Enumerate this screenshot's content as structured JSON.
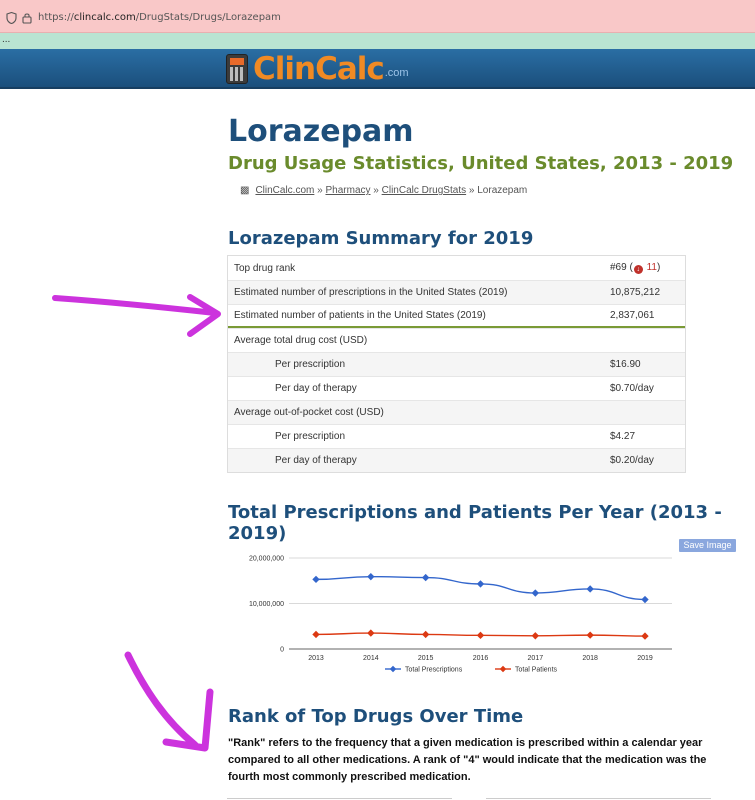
{
  "browser": {
    "url_prefix": "https://",
    "url_host": "clincalc.com",
    "url_path": "/DrugStats/Drugs/Lorazepam",
    "bookmarks_overflow": "..."
  },
  "site": {
    "logo_part1": "Clin",
    "logo_part2": "Calc",
    "logo_suffix": ".com"
  },
  "page": {
    "title": "Lorazepam",
    "subtitle": "Drug Usage Statistics, United States, 2013 - 2019",
    "breadcrumb": {
      "items": [
        "ClinCalc.com",
        "Pharmacy",
        "ClinCalc DrugStats"
      ],
      "separator": "»",
      "current": "Lorazepam"
    }
  },
  "summary": {
    "heading": "Lorazepam Summary for 2019",
    "rows": [
      {
        "label": "Top drug rank",
        "value": "#69 (",
        "change": "11",
        "value_end": ")"
      },
      {
        "label": "Estimated number of prescriptions in the United States (2019)",
        "value": "10,875,212"
      },
      {
        "label": "Estimated number of patients in the United States (2019)",
        "value": "2,837,061"
      },
      {
        "label": "Average total drug cost (USD)",
        "value": ""
      },
      {
        "label": "Per prescription",
        "value": "$16.90"
      },
      {
        "label": "Per day of therapy",
        "value": "$0.70/day"
      },
      {
        "label": "Average out-of-pocket cost (USD)",
        "value": ""
      },
      {
        "label": "Per prescription",
        "value": "$4.27"
      },
      {
        "label": "Per day of therapy",
        "value": "$0.20/day"
      }
    ]
  },
  "trend": {
    "heading": "Total Prescriptions and Patients Per Year (2013 - 2019)",
    "save_button": "Save Image"
  },
  "chart_data": {
    "type": "line",
    "x": [
      "2013",
      "2014",
      "2015",
      "2016",
      "2017",
      "2018",
      "2019"
    ],
    "ylim": [
      0,
      20000000
    ],
    "yticks": [
      "0",
      "10,000,000",
      "20,000,000"
    ],
    "grid": true,
    "legend_position": "bottom",
    "series": [
      {
        "name": "Total Prescriptions",
        "color": "#3366cc",
        "values": [
          15300000,
          15900000,
          15700000,
          14300000,
          12300000,
          13200000,
          10875212
        ]
      },
      {
        "name": "Total Patients",
        "color": "#dc3912",
        "values": [
          3200000,
          3500000,
          3200000,
          3000000,
          2900000,
          3050000,
          2837061
        ]
      }
    ]
  },
  "rank": {
    "heading": "Rank of Top Drugs Over Time",
    "paragraph": "\"Rank\" refers to the frequency that a given medication is prescribed within a calendar year compared to all other medications. A rank of \"4\" would indicate that the medication was the fourth most commonly prescribed medication."
  },
  "annotation_color": "#cc33dd"
}
